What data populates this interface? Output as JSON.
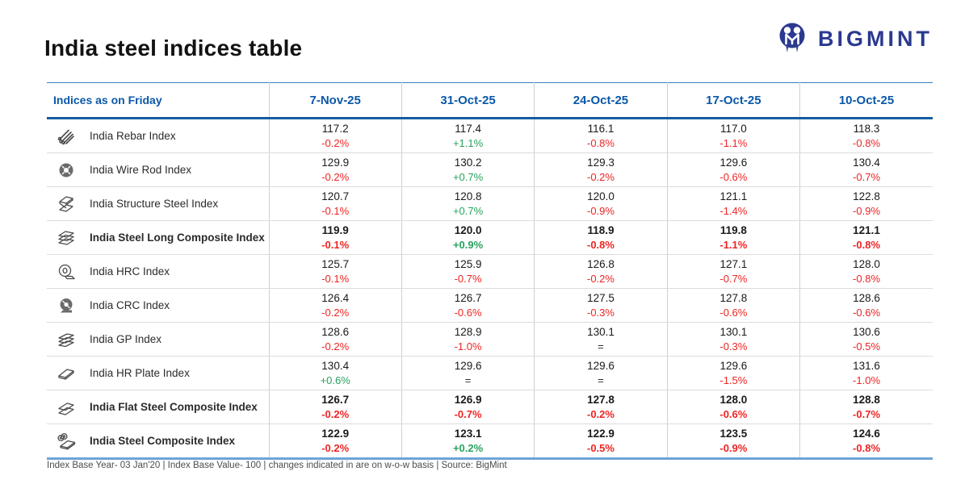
{
  "page": {
    "title": "India steel indices table",
    "footnote": "Index Base Year- 03 Jan'20 | Index Base Value- 100 | changes indicated in are on w-o-w basis | Source: BigMint"
  },
  "logo": {
    "text": "BIGMINT"
  },
  "colors": {
    "accent_blue": "#0A58A8",
    "logo_navy": "#2B3990",
    "negative_red": "#EE2424",
    "positive_green": "#27A35D",
    "neutral_text": "#2b2b2b"
  },
  "table": {
    "header": {
      "label": "Indices as on Friday",
      "dates": [
        "7-Nov-25",
        "31-Oct-25",
        "24-Oct-25",
        "17-Oct-25",
        "10-Oct-25"
      ]
    },
    "rows": [
      {
        "name": "India Rebar Index",
        "icon": "rebar-bundle-icon",
        "bold": false,
        "values": [
          "117.2",
          "117.4",
          "116.1",
          "117.0",
          "118.3"
        ],
        "changes": [
          "-0.2%",
          "+1.1%",
          "-0.8%",
          "-1.1%",
          "-0.8%"
        ]
      },
      {
        "name": "India Wire Rod Index",
        "icon": "wire-rod-coil-icon",
        "bold": false,
        "values": [
          "129.9",
          "130.2",
          "129.3",
          "129.6",
          "130.4"
        ],
        "changes": [
          "-0.2%",
          "+0.7%",
          "-0.2%",
          "-0.6%",
          "-0.7%"
        ]
      },
      {
        "name": "India Structure Steel Index",
        "icon": "structure-steel-beam-icon",
        "bold": false,
        "values": [
          "120.7",
          "120.8",
          "120.0",
          "121.1",
          "122.8"
        ],
        "changes": [
          "-0.1%",
          "+0.7%",
          "-0.9%",
          "-1.4%",
          "-0.9%"
        ]
      },
      {
        "name": "India Steel Long Composite Index",
        "icon": "long-steel-stack-icon",
        "bold": true,
        "values": [
          "119.9",
          "120.0",
          "118.9",
          "119.8",
          "121.1"
        ],
        "changes": [
          "-0.1%",
          "+0.9%",
          "-0.8%",
          "-1.1%",
          "-0.8%"
        ]
      },
      {
        "name": "India HRC Index",
        "icon": "hrc-coil-icon",
        "bold": false,
        "values": [
          "125.7",
          "125.9",
          "126.8",
          "127.1",
          "128.0"
        ],
        "changes": [
          "-0.1%",
          "-0.7%",
          "-0.2%",
          "-0.7%",
          "-0.8%"
        ]
      },
      {
        "name": "India CRC Index",
        "icon": "crc-coil-icon",
        "bold": false,
        "values": [
          "126.4",
          "126.7",
          "127.5",
          "127.8",
          "128.6"
        ],
        "changes": [
          "-0.2%",
          "-0.6%",
          "-0.3%",
          "-0.6%",
          "-0.6%"
        ]
      },
      {
        "name": "India GP Index",
        "icon": "gp-sheets-icon",
        "bold": false,
        "values": [
          "128.6",
          "128.9",
          "130.1",
          "130.1",
          "130.6"
        ],
        "changes": [
          "-0.2%",
          "-1.0%",
          "=",
          "-0.3%",
          "-0.5%"
        ]
      },
      {
        "name": "India HR Plate Index",
        "icon": "hr-plate-icon",
        "bold": false,
        "values": [
          "130.4",
          "129.6",
          "129.6",
          "129.6",
          "131.6"
        ],
        "changes": [
          "+0.6%",
          "=",
          "=",
          "-1.5%",
          "-1.0%"
        ]
      },
      {
        "name": "India Flat Steel Composite Index",
        "icon": "flat-steel-plates-icon",
        "bold": true,
        "values": [
          "126.7",
          "126.9",
          "127.8",
          "128.0",
          "128.8"
        ],
        "changes": [
          "-0.2%",
          "-0.7%",
          "-0.2%",
          "-0.6%",
          "-0.7%"
        ]
      },
      {
        "name": "India Steel Composite Index",
        "icon": "composite-coil-plate-icon",
        "bold": true,
        "values": [
          "122.9",
          "123.1",
          "122.9",
          "123.5",
          "124.6"
        ],
        "changes": [
          "-0.2%",
          "+0.2%",
          "-0.5%",
          "-0.9%",
          "-0.8%"
        ]
      }
    ]
  }
}
